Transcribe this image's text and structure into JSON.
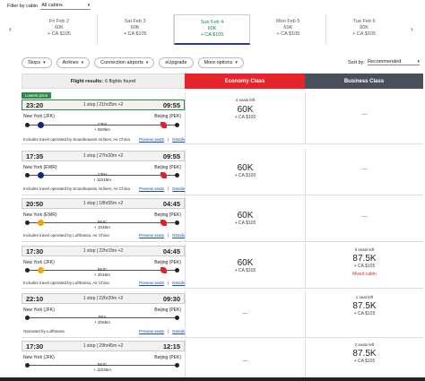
{
  "filter": {
    "label": "Filter by cabin",
    "value": "All cabins"
  },
  "dates": [
    {
      "day": "Fri Feb 2",
      "miles": "60K",
      "tax": "+ CA $105",
      "active": false
    },
    {
      "day": "Sat Feb 3",
      "miles": "60K",
      "tax": "+ CA $105",
      "active": false
    },
    {
      "day": "Sun Feb 4",
      "miles": "60K",
      "tax": "+ CA $105",
      "active": true
    },
    {
      "day": "Mon Feb 5",
      "miles": "60K",
      "tax": "+ CA $105",
      "active": false
    },
    {
      "day": "Tue Feb 6",
      "miles": "60K",
      "tax": "+ CA $105",
      "active": false
    }
  ],
  "filters": {
    "stops": "Stops",
    "airlines": "Airlines",
    "connection": "Connection airports",
    "upgrade": "eUpgrade",
    "more": "More options"
  },
  "sort": {
    "label": "Sort by:",
    "value": "Recommended"
  },
  "results": {
    "title": "Flight results:",
    "count": "6 flights found",
    "economy": "Economy Class",
    "business": "Business Class"
  },
  "flights": [
    {
      "badge": "Lowest price",
      "dep": "23:20",
      "arr": "09:55",
      "stops": "1 stop | 21hr35m +2",
      "from": "New York (JFK)",
      "to": "Beijing (PEK)",
      "via": "CPH",
      "layover": "+ 5h05m",
      "operated": "Includes travel operated by Scandinavian Airlines, Air China",
      "eco": {
        "seats": "4 seats left",
        "miles": "60K",
        "tax": "+ CA $100"
      },
      "bus": {
        "dash": "—"
      }
    },
    {
      "dep": "17:35",
      "arr": "09:55",
      "stops": "1 stop | 27hr20m +2",
      "from": "New York (EWR)",
      "to": "Beijing (PEK)",
      "via": "CPH",
      "layover": "+ 11h15m",
      "operated": "Includes travel operated by Scandinavian Airlines, Air China",
      "eco": {
        "seats": "",
        "miles": "60K",
        "tax": "+ CA $100"
      },
      "bus": {
        "dash": "—"
      }
    },
    {
      "dep": "20:50",
      "arr": "04:45",
      "stops": "1 stop | 18hr55m +2",
      "from": "New York (EWR)",
      "to": "Beijing (PEK)",
      "via": "MUC",
      "layover": "+ 1h45m",
      "operated": "Includes travel operated by Lufthansa, Air China",
      "eco": {
        "seats": "",
        "miles": "60K",
        "tax": "+ CA $105"
      },
      "bus": {
        "dash": "—"
      }
    },
    {
      "dep": "17:30",
      "arr": "04:45",
      "stops": "1 stop | 22hr15m +2",
      "from": "New York (JFK)",
      "to": "Beijing (PEK)",
      "via": "MUC",
      "layover": "+ 4h45m",
      "operated": "Includes travel operated by Lufthansa, Air China",
      "eco": {
        "seats": "",
        "miles": "60K",
        "tax": "+ CA $105"
      },
      "bus": {
        "seats": "5 seats left",
        "miles": "87.5K",
        "tax": "+ CA $105",
        "mixed": "Mixed cabin"
      }
    },
    {
      "dep": "22:10",
      "arr": "09:30",
      "stops": "1 stop | 22hr20m +2",
      "from": "New York (JFK)",
      "to": "Beijing (PEK)",
      "via": "FRA",
      "layover": "+ 2h55m",
      "operated": "Operated by Lufthansa",
      "eco": {
        "dash": "—"
      },
      "bus": {
        "seats": "1 seat left",
        "miles": "87.5K",
        "tax": "+ CA $129"
      }
    },
    {
      "dep": "17:30",
      "arr": "12:15",
      "stops": "1 stop | 29hr45m +2",
      "from": "New York (JFK)",
      "to": "Beijing (PEK)",
      "via": "MUC",
      "layover": "+ 11h35m",
      "operated": "",
      "eco": {
        "dash": "—"
      },
      "bus": {
        "seats": "2 seats left",
        "miles": "87.5K",
        "tax": "+ CA $105"
      }
    }
  ],
  "links": {
    "preview": "Preview seats",
    "details": "Details"
  }
}
